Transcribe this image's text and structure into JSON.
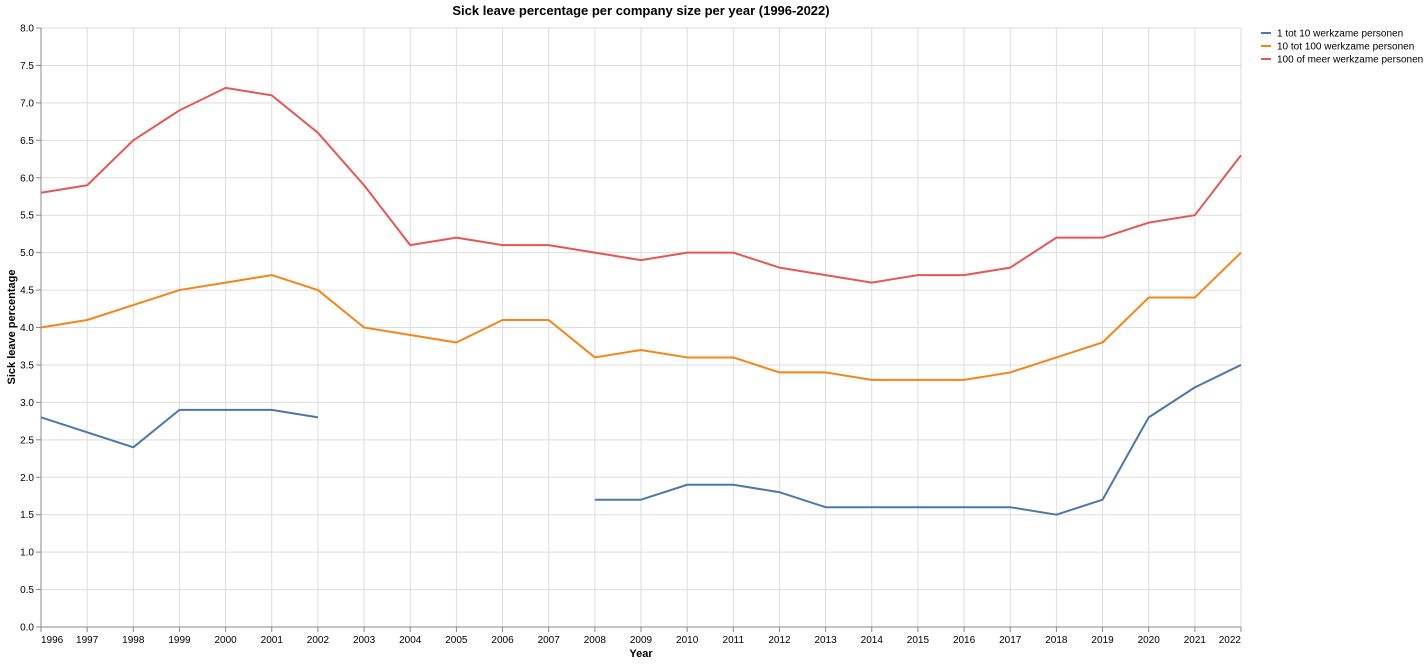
{
  "chart_data": {
    "type": "line",
    "title": "Sick leave percentage per company size per year (1996-2022)",
    "xlabel": "Year",
    "ylabel": "Sick leave percentage",
    "x": [
      1996,
      1997,
      1998,
      1999,
      2000,
      2001,
      2002,
      2003,
      2004,
      2005,
      2006,
      2007,
      2008,
      2009,
      2010,
      2011,
      2012,
      2013,
      2014,
      2015,
      2016,
      2017,
      2018,
      2019,
      2020,
      2021,
      2022
    ],
    "x_tick_labels": [
      "1996",
      "1997",
      "1998",
      "1999",
      "2000",
      "2001",
      "2002",
      "2003",
      "2004",
      "2005",
      "2006",
      "2007",
      "2008",
      "2009",
      "2010",
      "2011",
      "2012",
      "2013",
      "2014",
      "2015",
      "2016",
      "2017",
      "2018",
      "2019",
      "2020",
      "2021",
      "2022"
    ],
    "y_ticks": [
      0,
      0.5,
      1,
      1.5,
      2,
      2.5,
      3,
      3.5,
      4,
      4.5,
      5,
      5.5,
      6,
      6.5,
      7,
      7.5,
      8
    ],
    "y_tick_labels": [
      "0.0",
      "0.5",
      "1.0",
      "1.5",
      "2.0",
      "2.5",
      "3.0",
      "3.5",
      "4.0",
      "4.5",
      "5.0",
      "5.5",
      "6.0",
      "6.5",
      "7.0",
      "7.5",
      "8.0"
    ],
    "xlim": [
      1996,
      2022
    ],
    "ylim": [
      0,
      8
    ],
    "grid": true,
    "legend_position": "top-right",
    "series": [
      {
        "name": "1 tot 10 werkzame personen",
        "color": "#4c78a8",
        "values": [
          2.8,
          2.6,
          2.4,
          2.9,
          2.9,
          2.9,
          2.8,
          null,
          null,
          null,
          null,
          null,
          1.7,
          1.7,
          1.9,
          1.9,
          1.8,
          1.6,
          1.6,
          1.6,
          1.6,
          1.6,
          1.5,
          1.7,
          2.8,
          3.2,
          3.5
        ]
      },
      {
        "name": "10 tot 100 werkzame personen",
        "color": "#f58518",
        "values": [
          4.0,
          4.1,
          4.3,
          4.5,
          4.6,
          4.7,
          4.5,
          4.0,
          3.9,
          3.8,
          4.1,
          4.1,
          3.6,
          3.7,
          3.6,
          3.6,
          3.4,
          3.4,
          3.3,
          3.3,
          3.3,
          3.4,
          3.6,
          3.8,
          4.4,
          4.4,
          5.0
        ]
      },
      {
        "name": "100 of meer werkzame personen",
        "color": "#e45756",
        "values": [
          5.8,
          5.9,
          6.5,
          6.9,
          7.2,
          7.1,
          6.6,
          5.9,
          5.1,
          5.2,
          5.1,
          5.1,
          5.0,
          4.9,
          5.0,
          5.0,
          4.8,
          4.7,
          4.6,
          4.7,
          4.7,
          4.8,
          5.2,
          5.2,
          5.4,
          5.5,
          6.3
        ]
      }
    ]
  }
}
